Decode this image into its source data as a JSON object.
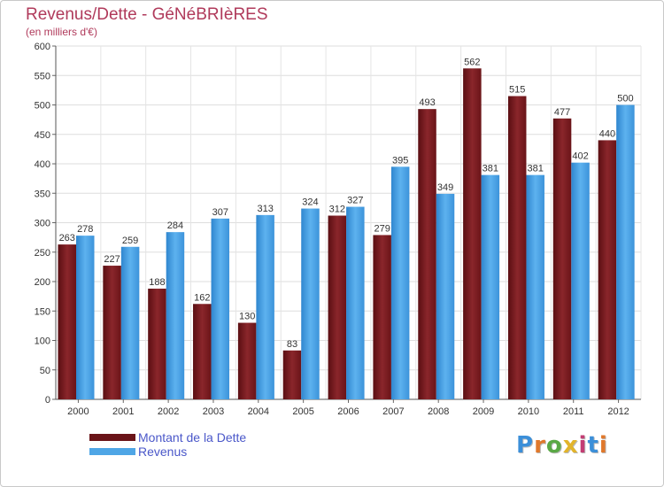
{
  "title": "Revenus/Dette - GéNéBRIèRES",
  "subtitle": "(en milliers d'€)",
  "legend": {
    "dette_label": "Montant de la Dette",
    "revenus_label": "Revenus"
  },
  "logo": {
    "text": "Proxiti"
  },
  "colors": {
    "dette": "#7a1a1f",
    "revenus": "#4fa6e6",
    "title": "#b03a5b",
    "legend_text": "#4a57c9"
  },
  "chart_data": {
    "type": "bar",
    "title": "Revenus/Dette - GéNéBRIèRES",
    "subtitle": "(en milliers d'€)",
    "categories": [
      "2000",
      "2001",
      "2002",
      "2003",
      "2004",
      "2005",
      "2006",
      "2007",
      "2008",
      "2009",
      "2010",
      "2011",
      "2012"
    ],
    "series": [
      {
        "name": "Montant de la Dette",
        "values": [
          263,
          227,
          188,
          162,
          130,
          83,
          312,
          279,
          493,
          562,
          515,
          477,
          440
        ]
      },
      {
        "name": "Revenus",
        "values": [
          278,
          259,
          284,
          307,
          313,
          324,
          327,
          395,
          349,
          381,
          381,
          402,
          500
        ]
      }
    ],
    "yticks": [
      0,
      50,
      100,
      150,
      200,
      250,
      300,
      350,
      400,
      450,
      500,
      550,
      600
    ],
    "ylim": [
      0,
      600
    ],
    "grid": true,
    "legend_position": "bottom-left"
  }
}
